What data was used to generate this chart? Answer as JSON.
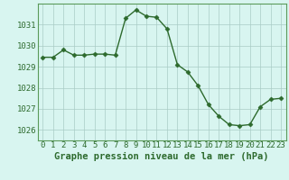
{
  "hours": [
    0,
    1,
    2,
    3,
    4,
    5,
    6,
    7,
    8,
    9,
    10,
    11,
    12,
    13,
    14,
    15,
    16,
    17,
    18,
    19,
    20,
    21,
    22,
    23
  ],
  "pressure": [
    1029.45,
    1029.45,
    1029.8,
    1029.55,
    1029.55,
    1029.6,
    1029.6,
    1029.55,
    1031.3,
    1031.7,
    1031.4,
    1031.35,
    1030.8,
    1029.1,
    1028.75,
    1028.1,
    1027.2,
    1026.65,
    1026.25,
    1026.2,
    1026.25,
    1027.1,
    1027.45,
    1027.5
  ],
  "line_color": "#2d6a2d",
  "marker": "D",
  "marker_size": 2.5,
  "bg_color": "#d8f5f0",
  "grid_color": "#aaccc6",
  "xlabel": "Graphe pression niveau de la mer (hPa)",
  "xlabel_fontsize": 7.5,
  "ylabel_ticks": [
    1026,
    1027,
    1028,
    1029,
    1030,
    1031
  ],
  "ylim": [
    1025.5,
    1032.0
  ],
  "xlim": [
    -0.5,
    23.5
  ],
  "tick_color": "#2d6a2d",
  "tick_fontsize": 6.5,
  "spine_color": "#5a9a5a"
}
